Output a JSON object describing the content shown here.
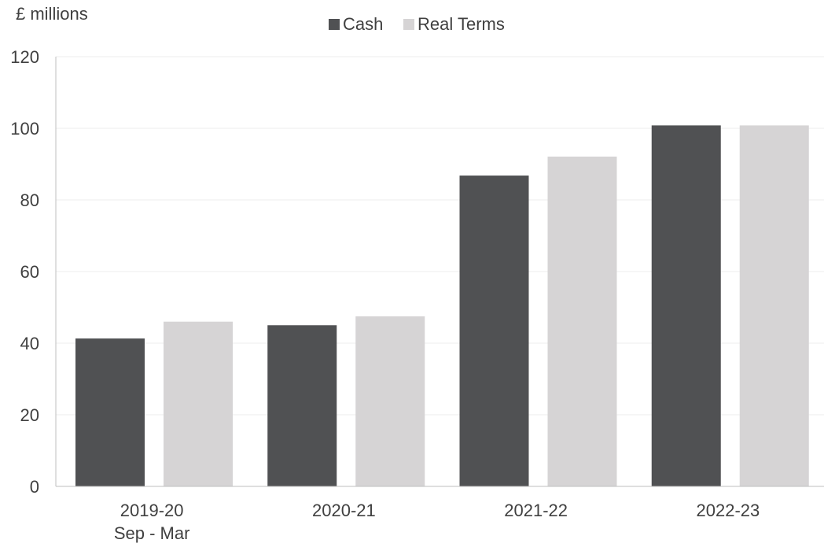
{
  "chart_data": {
    "type": "bar",
    "unit_label": "£ millions",
    "categories": [
      [
        "2019-20",
        "Sep - Mar"
      ],
      [
        "2020-21"
      ],
      [
        "2021-22"
      ],
      [
        "2022-23"
      ]
    ],
    "series": [
      {
        "name": "Cash",
        "color": "#505153",
        "values": [
          41.3,
          45.0,
          86.8,
          100.8
        ]
      },
      {
        "name": "Real Terms",
        "color": "#d6d4d5",
        "values": [
          46.0,
          47.5,
          92.1,
          100.8
        ]
      }
    ],
    "ylim": [
      0,
      120
    ],
    "yticks": [
      0,
      20,
      40,
      60,
      80,
      100,
      120
    ],
    "grid": true,
    "legend_position": "top-center"
  }
}
